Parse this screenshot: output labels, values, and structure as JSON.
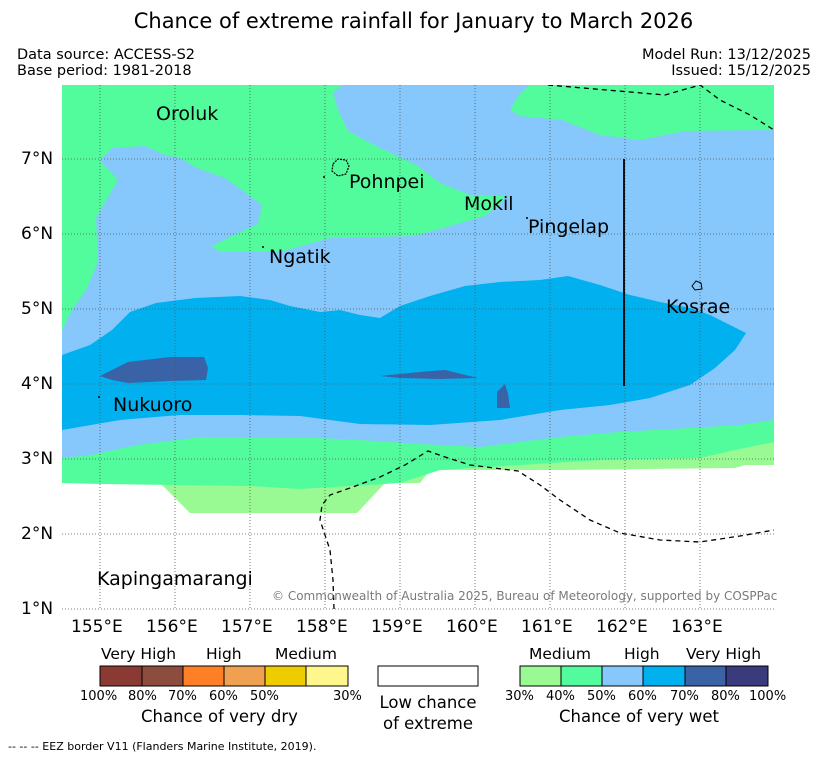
{
  "header": {
    "title": "Chance of extreme rainfall for January to March 2026",
    "data_source": "Data source: ACCESS-S2",
    "base_period": "Base period: 1981-2018",
    "model_run": "Model Run: 13/12/2025",
    "issued": "Issued: 15/12/2025"
  },
  "map": {
    "places": [
      "Oroluk",
      "Pohnpei",
      "Mokil",
      "Pingelap",
      "Ngatik",
      "Kosrae",
      "Nukuoro",
      "Kapingamarangi"
    ],
    "lat_ticks": [
      "7°N",
      "6°N",
      "5°N",
      "4°N",
      "3°N",
      "2°N",
      "1°N"
    ],
    "lon_ticks": [
      "155°E",
      "156°E",
      "157°E",
      "158°E",
      "159°E",
      "160°E",
      "161°E",
      "162°E",
      "163°E"
    ],
    "copyright": "© Commonwealth of Australia 2025, Bureau of Meteorology, supported by COSPPac"
  },
  "colors": {
    "wet_medium_1": "#99fa94",
    "wet_medium_2": "#52fc9c",
    "wet_high_1": "#86c8fb",
    "wet_high_2": "#00b0ef",
    "wet_very_high_1": "#3a62a6",
    "wet_very_high_2": "#3a3b7c",
    "dry_very_high_1": "#8a3a33",
    "dry_very_high_2": "#8c4d3e",
    "dry_high_1": "#ff7f26",
    "dry_high_2": "#efa050",
    "dry_medium_1": "#efcc00",
    "dry_medium_2": "#fff68c"
  },
  "legend": {
    "dry": {
      "headers": [
        "Very High",
        "High",
        "Medium"
      ],
      "percents": [
        "100%",
        "80%",
        "70%",
        "60%",
        "50%",
        "30%"
      ],
      "caption": "Chance of very dry"
    },
    "neutral": {
      "caption_line1": "Low chance",
      "caption_line2": "of extreme"
    },
    "wet": {
      "headers": [
        "Medium",
        "High",
        "Very High"
      ],
      "percents": [
        "30%",
        "40%",
        "50%",
        "60%",
        "70%",
        "80%",
        "100%"
      ],
      "caption": "Chance of very wet"
    }
  },
  "footer": "-- -- -- EEZ border V11 (Flanders Marine Institute, 2019)."
}
